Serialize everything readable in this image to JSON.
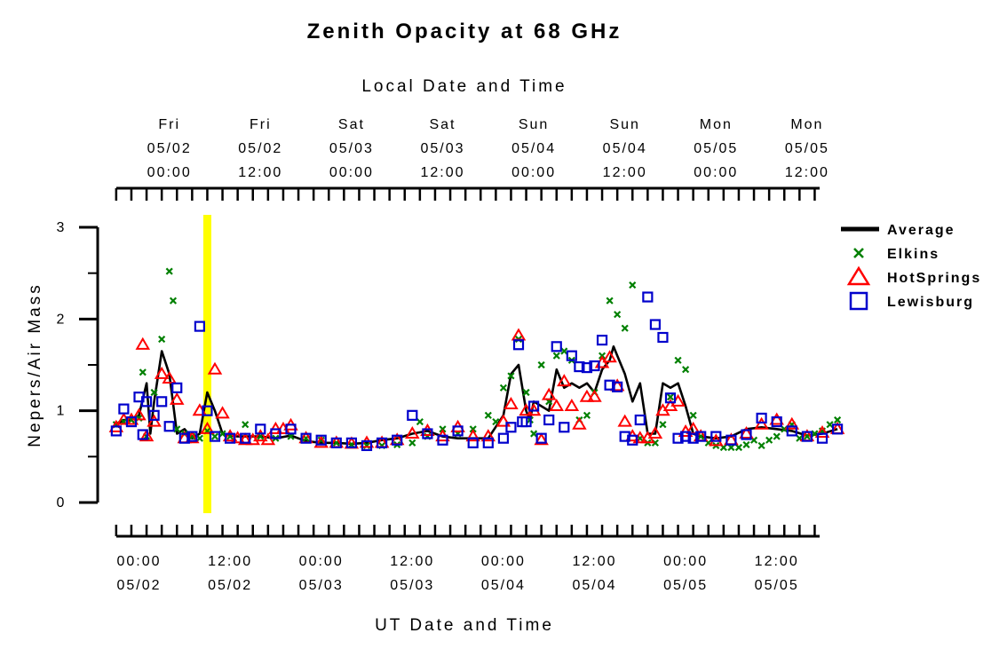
{
  "chart_data": {
    "type": "scatter",
    "title": "Zenith Opacity at 68 GHz",
    "top_axis_label": "Local Date and Time",
    "xlabel": "UT Date and Time",
    "ylabel": "Nepers/Air Mass",
    "ylim": [
      0,
      3
    ],
    "y_ticks": [
      "0",
      "1",
      "2",
      "3"
    ],
    "xlim_hours": [
      -3,
      67
    ],
    "x_ticks_bottom": [
      {
        "h": 0,
        "time": "00:00",
        "date": "05/02"
      },
      {
        "h": 12,
        "time": "12:00",
        "date": "05/02"
      },
      {
        "h": 24,
        "time": "00:00",
        "date": "05/03"
      },
      {
        "h": 36,
        "time": "12:00",
        "date": "05/03"
      },
      {
        "h": 48,
        "time": "00:00",
        "date": "05/04"
      },
      {
        "h": 60,
        "time": "12:00",
        "date": "05/04"
      },
      {
        "h": 72,
        "time": "00:00",
        "date": "05/05"
      },
      {
        "h": 84,
        "time": "12:00",
        "date": "05/05"
      }
    ],
    "x_ticks_top": [
      {
        "day": "Fri",
        "date": "05/02",
        "time": "00:00"
      },
      {
        "day": "Fri",
        "date": "05/02",
        "time": "12:00"
      },
      {
        "day": "Sat",
        "date": "05/03",
        "time": "00:00"
      },
      {
        "day": "Sat",
        "date": "05/03",
        "time": "12:00"
      },
      {
        "day": "Sun",
        "date": "05/04",
        "time": "00:00"
      },
      {
        "day": "Sun",
        "date": "05/04",
        "time": "12:00"
      },
      {
        "day": "Mon",
        "date": "05/05",
        "time": "00:00"
      },
      {
        "day": "Mon",
        "date": "05/05",
        "time": "12:00"
      }
    ],
    "highlight_hour": 9,
    "highlight_color": "#ffff00",
    "series": [
      {
        "name": "Average",
        "color": "#000000",
        "marker": "line",
        "x": [
          -3,
          -2,
          -1,
          0,
          1,
          1.5,
          2,
          3,
          4,
          5,
          6,
          7,
          8,
          9,
          10,
          11,
          12,
          13,
          14,
          15,
          16,
          18,
          20,
          22,
          24,
          26,
          28,
          30,
          32,
          34,
          36,
          38,
          40,
          42,
          44,
          46,
          48,
          49,
          50,
          51,
          51.5,
          52,
          53,
          54,
          55,
          56,
          57,
          58,
          59,
          60,
          61,
          62,
          62.5,
          63,
          64,
          65,
          66,
          67,
          68,
          69,
          70,
          71,
          72,
          73,
          74,
          76,
          78,
          80,
          82,
          84,
          86,
          88,
          90,
          92
        ],
        "y": [
          0.85,
          0.9,
          0.9,
          0.95,
          1.3,
          0.75,
          1.1,
          1.65,
          1.4,
          0.75,
          0.8,
          0.7,
          0.75,
          1.2,
          1.0,
          0.75,
          0.73,
          0.72,
          0.72,
          0.72,
          0.72,
          0.7,
          0.73,
          0.67,
          0.65,
          0.65,
          0.64,
          0.65,
          0.68,
          0.7,
          0.75,
          0.78,
          0.72,
          0.7,
          0.7,
          0.7,
          0.95,
          1.4,
          1.5,
          1.0,
          0.9,
          1.1,
          1.05,
          1.0,
          1.45,
          1.25,
          1.3,
          1.25,
          1.3,
          1.2,
          1.45,
          1.55,
          1.7,
          1.6,
          1.4,
          1.1,
          1.3,
          0.75,
          0.75,
          1.3,
          1.25,
          1.3,
          1.05,
          0.75,
          0.72,
          0.7,
          0.72,
          0.8,
          0.82,
          0.8,
          0.78,
          0.73,
          0.75,
          0.8
        ]
      },
      {
        "name": "Elkins",
        "color": "#008000",
        "marker": "x",
        "x": [
          -3,
          -2,
          -1,
          0,
          0.5,
          1,
          2,
          3,
          4,
          4.5,
          5,
          6,
          7,
          8,
          9,
          10,
          11,
          12,
          14,
          16,
          18,
          20,
          22,
          24,
          26,
          28,
          30,
          32,
          34,
          36,
          37,
          38,
          40,
          42,
          44,
          46,
          47,
          48,
          49,
          50,
          51,
          51.5,
          52,
          53,
          54,
          55,
          56,
          57,
          58,
          59,
          60,
          61,
          62,
          63,
          64,
          65,
          66,
          67,
          68,
          69,
          70,
          71,
          72,
          73,
          74,
          75,
          76,
          77,
          78,
          79,
          80,
          81,
          82,
          83,
          84,
          85,
          86,
          87,
          88,
          89,
          90,
          91,
          92
        ],
        "y": [
          0.85,
          0.88,
          0.9,
          0.92,
          1.42,
          0.72,
          1.2,
          1.78,
          2.52,
          2.2,
          0.8,
          0.75,
          0.72,
          0.7,
          0.78,
          0.72,
          0.75,
          0.72,
          0.85,
          0.72,
          0.7,
          0.72,
          0.7,
          0.68,
          0.65,
          0.63,
          0.62,
          0.62,
          0.63,
          0.65,
          0.88,
          0.72,
          0.8,
          0.75,
          0.8,
          0.95,
          0.88,
          1.25,
          1.38,
          1.78,
          1.2,
          0.9,
          0.75,
          1.5,
          1.1,
          1.6,
          1.65,
          1.55,
          0.9,
          0.95,
          1.2,
          1.6,
          2.2,
          2.05,
          1.9,
          2.37,
          0.7,
          0.65,
          0.65,
          0.85,
          1.15,
          1.55,
          1.45,
          0.95,
          0.72,
          0.65,
          0.62,
          0.6,
          0.6,
          0.6,
          0.63,
          0.68,
          0.62,
          0.68,
          0.72,
          0.8,
          0.85,
          0.7,
          0.72,
          0.75,
          0.78,
          0.85,
          0.9
        ]
      },
      {
        "name": "HotSprings",
        "color": "#ff0000",
        "marker": "triangle",
        "x": [
          -3,
          -2,
          -1,
          0,
          0.5,
          1,
          2,
          3,
          4,
          5,
          6,
          7,
          8,
          9,
          10,
          11,
          12,
          13,
          14,
          15,
          16,
          17,
          18,
          19,
          20,
          22,
          24,
          26,
          28,
          30,
          32,
          34,
          36,
          38,
          40,
          42,
          44,
          46,
          48,
          49,
          50,
          51,
          52,
          53,
          54,
          55,
          56,
          57,
          58,
          59,
          60,
          61,
          62,
          63,
          64,
          65,
          66,
          67,
          68,
          69,
          70,
          71,
          72,
          73,
          74,
          76,
          78,
          80,
          82,
          84,
          86,
          88,
          90,
          92
        ],
        "y": [
          0.82,
          0.9,
          0.9,
          0.95,
          1.72,
          0.72,
          0.88,
          1.4,
          1.35,
          1.12,
          0.7,
          0.7,
          1.0,
          0.8,
          1.45,
          0.97,
          0.72,
          0.7,
          0.68,
          0.68,
          0.72,
          0.68,
          0.8,
          0.8,
          0.84,
          0.7,
          0.65,
          0.65,
          0.64,
          0.65,
          0.65,
          0.68,
          0.75,
          0.78,
          0.72,
          0.82,
          0.72,
          0.72,
          0.88,
          1.07,
          1.82,
          1.0,
          1.0,
          0.68,
          1.17,
          1.05,
          1.32,
          1.05,
          0.85,
          1.15,
          1.15,
          1.52,
          1.58,
          1.27,
          0.88,
          0.72,
          0.7,
          0.7,
          0.75,
          1.0,
          1.05,
          1.1,
          0.77,
          0.8,
          0.72,
          0.67,
          0.68,
          0.75,
          0.85,
          0.9,
          0.85,
          0.72,
          0.76,
          0.8
        ]
      },
      {
        "name": "Lewisburg",
        "color": "#0000cc",
        "marker": "square",
        "x": [
          -3,
          -2,
          -1,
          0,
          0.5,
          1,
          2,
          3,
          4,
          5,
          6,
          7,
          8,
          9,
          10,
          12,
          14,
          16,
          18,
          20,
          22,
          24,
          26,
          28,
          30,
          32,
          34,
          36,
          38,
          40,
          42,
          44,
          46,
          48,
          49,
          50,
          50.5,
          51,
          52,
          53,
          54,
          55,
          56,
          57,
          58,
          59,
          60,
          61,
          62,
          63,
          64,
          65,
          66,
          67,
          68,
          69,
          70,
          71,
          72,
          73,
          74,
          76,
          78,
          80,
          82,
          84,
          86,
          88,
          90,
          92
        ],
        "y": [
          0.78,
          1.02,
          0.88,
          1.15,
          0.74,
          1.1,
          0.95,
          1.1,
          0.83,
          1.25,
          0.7,
          0.72,
          1.92,
          1.0,
          0.72,
          0.7,
          0.7,
          0.8,
          0.75,
          0.8,
          0.7,
          0.68,
          0.65,
          0.65,
          0.62,
          0.65,
          0.68,
          0.95,
          0.75,
          0.68,
          0.78,
          0.65,
          0.65,
          0.7,
          0.82,
          1.72,
          0.88,
          0.88,
          1.05,
          0.7,
          0.9,
          1.7,
          0.82,
          1.6,
          1.48,
          1.47,
          1.49,
          1.77,
          1.28,
          1.26,
          0.72,
          0.68,
          0.9,
          2.24,
          1.94,
          1.8,
          1.14,
          0.7,
          0.72,
          0.7,
          0.72,
          0.72,
          0.68,
          0.74,
          0.92,
          0.88,
          0.78,
          0.72,
          0.7,
          0.8
        ]
      }
    ]
  }
}
